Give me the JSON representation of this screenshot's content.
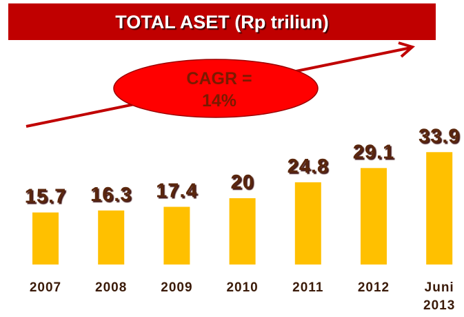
{
  "chart_data": {
    "type": "bar",
    "title": "TOTAL ASET (Rp triliun)",
    "annotation": [
      "CAGR =",
      "14%"
    ],
    "categories": [
      "2007",
      "2008",
      "2009",
      "2010",
      "2011",
      "2012",
      "Juni 2013"
    ],
    "values": [
      15.7,
      16.3,
      17.4,
      20,
      24.8,
      29.1,
      33.9
    ],
    "color": "#ffc000"
  }
}
